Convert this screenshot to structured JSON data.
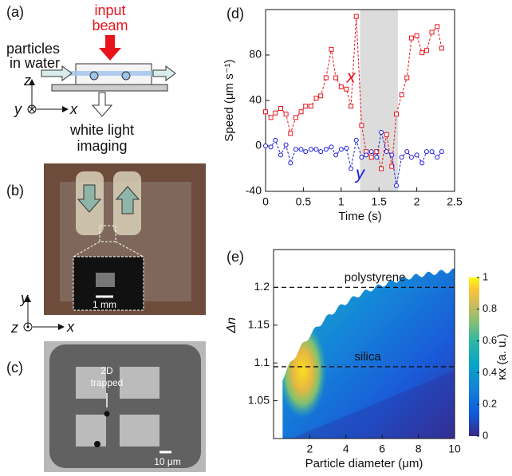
{
  "panels": {
    "a": {
      "label": "(a)",
      "beam": [
        "input",
        "beam"
      ],
      "particles": [
        "particles",
        "in water"
      ],
      "imaging": [
        "white light",
        "imaging"
      ],
      "axis_z": "z",
      "axis_y": "y",
      "axis_x": "x"
    },
    "b": {
      "label": "(b)",
      "scale": "1 mm",
      "axis_y": "y",
      "axis_z": "z",
      "axis_x": "x"
    },
    "c": {
      "label": "(c)",
      "note": [
        "2D",
        "trapped"
      ],
      "scale": "10 μm"
    }
  },
  "chart_data": [
    {
      "type": "line",
      "panel_label": "(d)",
      "xlabel": "Time (s)",
      "ylabel": "Speed (μm s⁻¹)",
      "x": [
        0,
        0.07,
        0.13,
        0.2,
        0.27,
        0.33,
        0.4,
        0.47,
        0.53,
        0.6,
        0.67,
        0.73,
        0.8,
        0.87,
        0.93,
        1.0,
        1.07,
        1.13,
        1.2,
        1.27,
        1.33,
        1.4,
        1.47,
        1.53,
        1.6,
        1.67,
        1.73,
        1.8,
        1.87,
        1.93,
        2.0,
        2.07,
        2.13,
        2.2,
        2.27,
        2.33
      ],
      "series": [
        {
          "name": "x",
          "color": "#e8141c",
          "marker": "square",
          "values": [
            30,
            25,
            29,
            33,
            28,
            11,
            25,
            30,
            35,
            35,
            42,
            44,
            60,
            85,
            60,
            52,
            50,
            35,
            114,
            18,
            -5,
            -10,
            -5,
            -20,
            10,
            -18,
            28,
            45,
            60,
            95,
            97,
            82,
            84,
            100,
            105,
            86
          ]
        },
        {
          "name": "y",
          "color": "#1a1adb",
          "marker": "circle",
          "values": [
            0,
            -1,
            5,
            -8,
            1,
            -15,
            -3,
            -3,
            -5,
            -3,
            -3,
            -5,
            -3,
            -1,
            -8,
            -3,
            -2,
            -20,
            5,
            -10,
            -8,
            -5,
            -10,
            12,
            -5,
            -8,
            -35,
            -10,
            -5,
            -10,
            -8,
            -15,
            -5,
            -5,
            -10,
            -5
          ]
        }
      ],
      "xlim": [
        0,
        2.5
      ],
      "xticks": [
        0,
        0.5,
        1,
        1.5,
        2,
        2.5
      ],
      "ylim": [
        -40,
        120
      ],
      "yticks": [
        -40,
        0,
        40,
        80
      ],
      "shaded_x": [
        1.25,
        1.75
      ],
      "shaded_color": "#dcdcdc"
    },
    {
      "type": "contour",
      "panel_label": "(e)",
      "xlabel": "Particle diameter (μm)",
      "ylabel": "Δn",
      "colorbar_label": "κx (a. u.)",
      "colorbar_lim": [
        0,
        1
      ],
      "colorbar_ticks": [
        0,
        0.2,
        0.4,
        0.6,
        0.8,
        1
      ],
      "xlim": [
        0,
        10
      ],
      "xticks": [
        2,
        4,
        6,
        8,
        10
      ],
      "ylim": [
        1,
        1.25
      ],
      "yticks": [
        1.05,
        1.1,
        1.15,
        1.2
      ],
      "reference_lines": [
        {
          "label": "polystyrene",
          "value": 1.2
        },
        {
          "label": "silica",
          "value": 1.095
        }
      ]
    }
  ]
}
